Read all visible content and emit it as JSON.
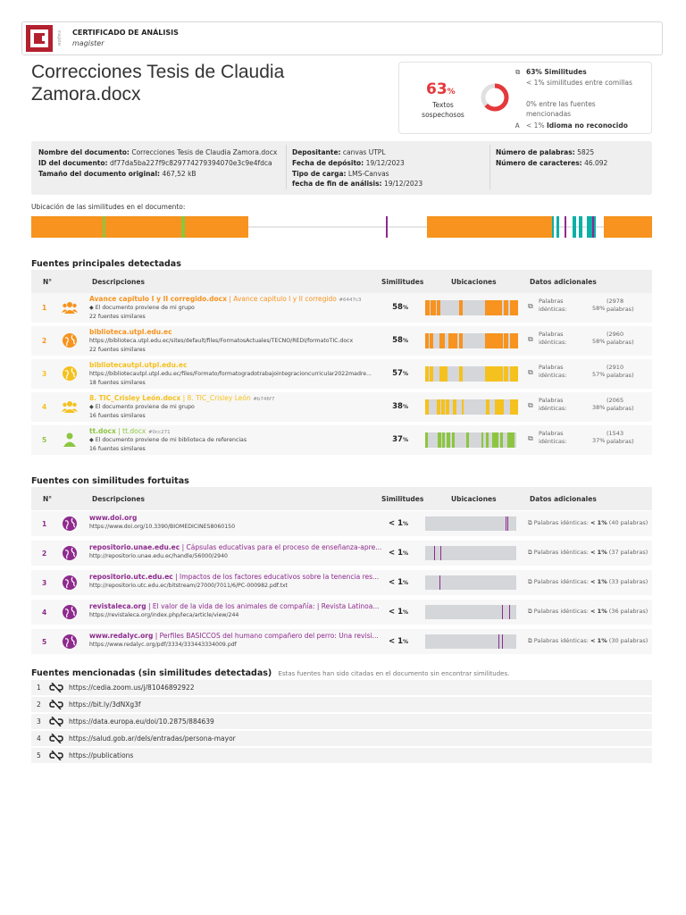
{
  "header": {
    "logo_text": "CI",
    "logo_side": "magister",
    "title": "CERTIFICADO DE ANÁLISIS",
    "subtitle": "magister"
  },
  "document_title": "Correcciones Tesis de Claudia Zamora.docx",
  "summary": {
    "percent": "63",
    "percent_unit": "%",
    "percent_label": "Textos sospechosos",
    "donut_fraction": 0.63,
    "line1_icon": "copy-icon",
    "line1_pct": "63%",
    "line1_label": "Similitudes",
    "line2_pct": "< 1%",
    "line2_label": "similitudes entre comillas",
    "line3_pct": "0%",
    "line3_label": "entre las fuentes mencionadas",
    "line4_icon": "translate-icon",
    "line4_pct": "< 1%",
    "line4_label": "Idioma no reconocido"
  },
  "meta": {
    "name_label": "Nombre del documento:",
    "name_value": "Correcciones Tesis de Claudia Zamora.docx",
    "id_label": "ID del documento:",
    "id_value": "df77da5ba227f9c829774279394070e3c9e4fdca",
    "size_label": "Tamaño del documento original:",
    "size_value": "467,52 kB",
    "dep_label": "Depositante:",
    "dep_value": "canvas UTPL",
    "date_label": "Fecha de depósito:",
    "date_value": "19/12/2023",
    "type_label": "Tipo de carga:",
    "type_value": "LMS-Canvas",
    "end_label": "fecha de fin de análisis:",
    "end_value": "19/12/2023",
    "words_label": "Número de palabras:",
    "words_value": "5825",
    "chars_label": "Número de caracteres:",
    "chars_value": "46.092"
  },
  "location_label": "Ubicación de las similitudes en el documento:",
  "main_sources": {
    "title": "Fuentes principales detectadas",
    "col_num": "N°",
    "col_desc": "Descripciones",
    "col_sim": "Similitudes",
    "col_loc": "Ubicaciones",
    "col_add": "Datos adicionales",
    "rows": [
      {
        "n": "1",
        "name": "Avance capitulo I y II corregido.docx",
        "sub": " | Avance capitulo I y II corregido",
        "id": "#6447c3",
        "detail": "El documento proviene de mi grupo",
        "count": "22 fuentes similares",
        "pct": "58",
        "words_label": "Palabras idénticas:",
        "words_pct": "58%",
        "words": "(2978 palabras)",
        "icon": "group-icon",
        "color": "#f7931e"
      },
      {
        "n": "2",
        "name": "biblioteca.utpl.edu.ec",
        "sub": "",
        "id": "",
        "detail": "https://biblioteca.utpl.edu.ec/sites/default/files/FormatosActuales/TECNO/REDI/formatoTIC.docx",
        "count": "22 fuentes similares",
        "pct": "58",
        "words_label": "Palabras idénticas:",
        "words_pct": "58%",
        "words": "(2960 palabras)",
        "icon": "globe-icon",
        "color": "#f7931e"
      },
      {
        "n": "3",
        "name": "bibliotecautpl.utpl.edu.ec",
        "sub": "",
        "id": "",
        "detail": "https://bibliotecautpl.utpl.edu.ec/files/Formato/formatogradotrabajointegracioncurricular2022madre...",
        "count": "18 fuentes similares",
        "pct": "57",
        "words_label": "Palabras idénticas:",
        "words_pct": "57%",
        "words": "(2910 palabras)",
        "icon": "globe-icon",
        "color": "#f5c11e"
      },
      {
        "n": "4",
        "name": "8. TIC_Crisley León.docx",
        "sub": " | 8. TIC_Crisley León",
        "id": "#b746f7",
        "detail": "El documento proviene de mi grupo",
        "count": "16 fuentes similares",
        "pct": "38",
        "words_label": "Palabras idénticas:",
        "words_pct": "38%",
        "words": "(2065 palabras)",
        "icon": "group-icon",
        "color": "#f5c11e"
      },
      {
        "n": "5",
        "name": "tt.docx",
        "sub": " | tt.docx",
        "id": "#0cc271",
        "detail": "El documento proviene de mi biblioteca de referencias",
        "count": "16 fuentes similares",
        "pct": "37",
        "words_label": "Palabras idénticas:",
        "words_pct": "37%",
        "words": "(1543 palabras)",
        "icon": "person-icon",
        "color": "#8cc63f"
      }
    ]
  },
  "fortuitous_sources": {
    "title": "Fuentes con similitudes fortuitas",
    "col_num": "N°",
    "col_desc": "Descripciones",
    "col_sim": "Similitudes",
    "col_loc": "Ubicaciones",
    "col_add": "Datos adicionales",
    "rows": [
      {
        "n": "1",
        "name": "www.doi.org",
        "sub": "",
        "url": "https://www.doi.org/10.3390/BIOMEDICINES8060150",
        "pct": "< 1",
        "add_label": "Palabras idénticas:",
        "add_pct": "< 1%",
        "add_words": "(40 palabras)"
      },
      {
        "n": "2",
        "name": "repositorio.unae.edu.ec",
        "sub": " | Cápsulas educativas para el proceso de enseñanza-apre...",
        "url": "http://repositorio.unae.edu.ec/handle/56000/2940",
        "pct": "< 1",
        "add_label": "Palabras idénticas:",
        "add_pct": "< 1%",
        "add_words": "(37 palabras)"
      },
      {
        "n": "3",
        "name": "repositorio.utc.edu.ec",
        "sub": " | Impactos de los factores educativos sobre la tenencia res...",
        "url": "http://repositorio.utc.edu.ec/bitstream/27000/7011/6/PC-000982.pdf.txt",
        "pct": "< 1",
        "add_label": "Palabras idénticas:",
        "add_pct": "< 1%",
        "add_words": "(33 palabras)"
      },
      {
        "n": "4",
        "name": "revistaleca.org",
        "sub": " | El valor de la vida de los animales de compañía: | Revista Latinoa...",
        "url": "https://revistaleca.org/index.php/leca/article/view/244",
        "pct": "< 1",
        "add_label": "Palabras idénticas:",
        "add_pct": "< 1%",
        "add_words": "(36 palabras)"
      },
      {
        "n": "5",
        "name": "www.redalyc.org",
        "sub": " | Perfiles BASICCOS del humano compañero del perro: Una revisi...",
        "url": "https://www.redalyc.org/pdf/3334/333443334009.pdf",
        "pct": "< 1",
        "add_label": "Palabras idénticas:",
        "add_pct": "< 1%",
        "add_words": "(30 palabras)"
      }
    ]
  },
  "mentioned_sources": {
    "title": "Fuentes mencionadas (sin similitudes detectadas)",
    "note": "Estas fuentes han sido citadas en el documento sin encontrar similitudes.",
    "rows": [
      {
        "n": "1",
        "url": "https://cedia.zoom.us/j/81046892922"
      },
      {
        "n": "2",
        "url": "https://bit.ly/3dNXg3f"
      },
      {
        "n": "3",
        "url": "https://data.europa.eu/doi/10.2875/884639"
      },
      {
        "n": "4",
        "url": "https://salud.gob.ar/dels/entradas/persona-mayor"
      },
      {
        "n": "5",
        "url": "https://publications"
      }
    ]
  }
}
